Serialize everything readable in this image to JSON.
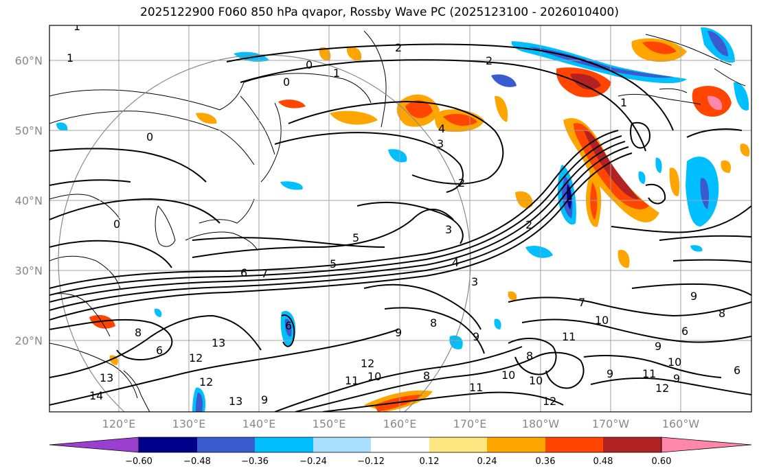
{
  "title": "2025122900 F060 850 hPa qvapor, Rossby Wave PC (2025123100 - 2026010400)",
  "lat_labels": [
    "60°N",
    "50°N",
    "40°N",
    "30°N",
    "20°N"
  ],
  "lon_labels": [
    "120°E",
    "130°E",
    "140°E",
    "150°E",
    "160°E",
    "170°E",
    "180°W",
    "170°W",
    "160°W"
  ],
  "colorbar": {
    "tick_labels": [
      "−0.60",
      "−0.48",
      "−0.36",
      "−0.24",
      "−0.12",
      "0.12",
      "0.24",
      "0.36",
      "0.48",
      "0.60"
    ],
    "colors": [
      "#9a3fd0",
      "#00008b",
      "#3a5bd0",
      "#00bfff",
      "#aadfff",
      "#ffffff",
      "#ffe680",
      "#ffa500",
      "#ff4500",
      "#b22222",
      "#ff88aa"
    ]
  },
  "contour_labels": [
    {
      "text": "1"
    },
    {
      "text": "1"
    },
    {
      "text": "0"
    },
    {
      "text": "1"
    },
    {
      "text": "2"
    },
    {
      "text": "2"
    },
    {
      "text": "1"
    },
    {
      "text": "0"
    },
    {
      "text": "0"
    },
    {
      "text": "3"
    },
    {
      "text": "2"
    },
    {
      "text": "4"
    },
    {
      "text": "0"
    },
    {
      "text": "5"
    },
    {
      "text": "3"
    },
    {
      "text": "5"
    },
    {
      "text": "2"
    },
    {
      "text": "4"
    },
    {
      "text": "6"
    },
    {
      "text": "7"
    },
    {
      "text": "3"
    },
    {
      "text": "7"
    },
    {
      "text": "9"
    },
    {
      "text": "8"
    },
    {
      "text": "10"
    },
    {
      "text": "8"
    },
    {
      "text": "6"
    },
    {
      "text": "9"
    },
    {
      "text": "9"
    },
    {
      "text": "11"
    },
    {
      "text": "9"
    },
    {
      "text": "6"
    },
    {
      "text": "8"
    },
    {
      "text": "6"
    },
    {
      "text": "13"
    },
    {
      "text": "12"
    },
    {
      "text": "12"
    },
    {
      "text": "8"
    },
    {
      "text": "13"
    },
    {
      "text": "10"
    },
    {
      "text": "11"
    },
    {
      "text": "8"
    },
    {
      "text": "10"
    },
    {
      "text": "11"
    },
    {
      "text": "9"
    },
    {
      "text": "10"
    },
    {
      "text": "9"
    },
    {
      "text": "12"
    },
    {
      "text": "12"
    },
    {
      "text": "14"
    },
    {
      "text": "13"
    },
    {
      "text": "9"
    },
    {
      "text": "12"
    },
    {
      "text": "11"
    },
    {
      "text": "10"
    },
    {
      "text": "6"
    }
  ]
}
